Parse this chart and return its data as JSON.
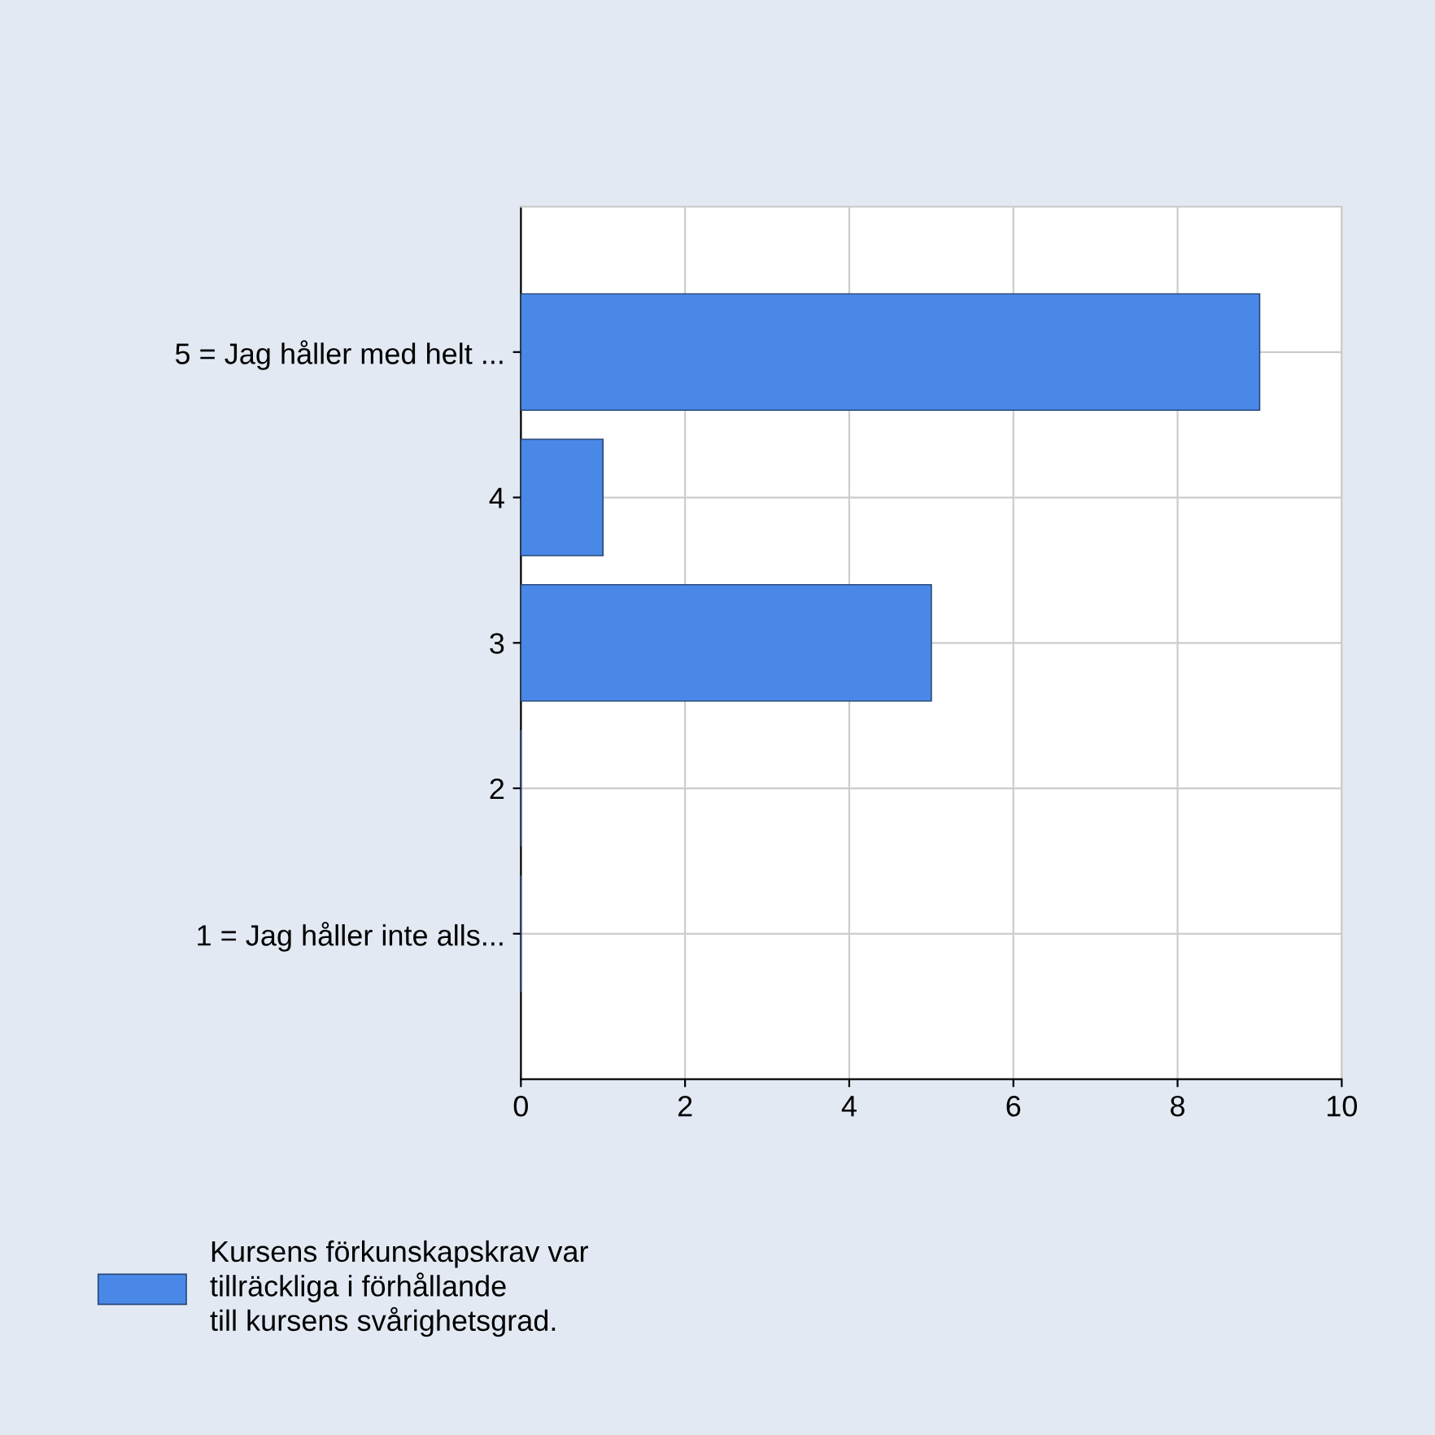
{
  "chart_data": {
    "type": "bar",
    "orientation": "horizontal",
    "categories": [
      "5 = Jag håller med helt ...",
      "4",
      "3",
      "2",
      "1 = Jag håller inte alls..."
    ],
    "series": [
      {
        "name": "Kursens förkunskapskrav var\ntillräckliga i förhållande\ntill kursens svårighetsgrad.",
        "color": "#4a88e8",
        "values": [
          9,
          1,
          5,
          0,
          0
        ]
      }
    ],
    "xlim": [
      0,
      10
    ],
    "xticks": [
      0,
      2,
      4,
      6,
      8,
      10
    ],
    "grid": true,
    "legend": "bottom left"
  }
}
